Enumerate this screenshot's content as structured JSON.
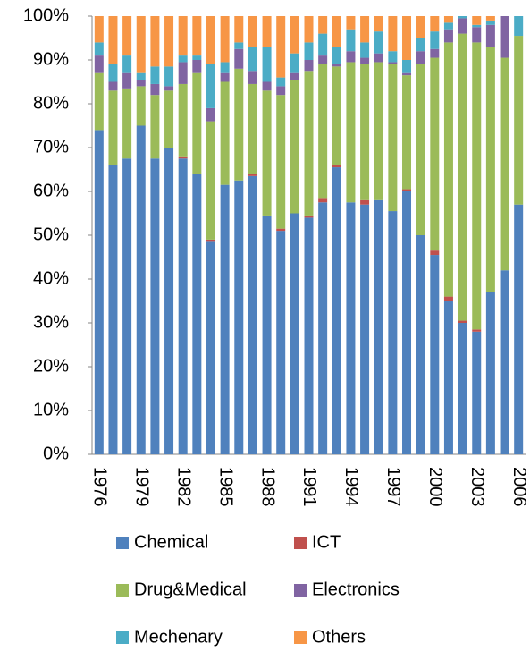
{
  "chart_data": {
    "type": "stacked_bar",
    "categories": [
      "1976",
      null,
      null,
      "1979",
      null,
      null,
      "1982",
      null,
      null,
      "1985",
      null,
      null,
      "1988",
      null,
      null,
      "1991",
      null,
      null,
      "1994",
      null,
      null,
      "1997",
      null,
      null,
      "2000",
      null,
      null,
      "2003",
      null,
      null,
      "2006"
    ],
    "series": [
      {
        "name": "Chemical",
        "color": "#4f81bd",
        "values": [
          74,
          66,
          67.5,
          75,
          67.5,
          70,
          67.5,
          64,
          48.5,
          61.5,
          62.5,
          63.5,
          54.5,
          51,
          55,
          54,
          57.5,
          65.5,
          57.5,
          57,
          58,
          55.5,
          60,
          50,
          45.5,
          35,
          30,
          28,
          37,
          42,
          57
        ]
      },
      {
        "name": "ICT",
        "color": "#c0504d",
        "values": [
          0,
          0,
          0,
          0,
          0,
          0,
          0.5,
          0,
          0.5,
          0,
          0,
          0.5,
          0,
          0.5,
          0,
          0.5,
          1,
          0.5,
          0,
          1,
          0,
          0,
          0.5,
          0,
          1,
          1,
          0.5,
          0.5,
          0,
          0,
          0
        ]
      },
      {
        "name": "Drug&Medical",
        "color": "#9bbb59",
        "values": [
          13,
          17,
          16,
          9,
          14.5,
          13,
          16.5,
          23,
          27,
          23.5,
          25.5,
          20.5,
          28.5,
          30.5,
          30.5,
          33,
          30.5,
          22.5,
          32,
          31,
          31.5,
          33.5,
          26,
          39,
          44,
          58,
          65.5,
          65.5,
          56,
          48.5,
          38.5
        ]
      },
      {
        "name": "Electronics",
        "color": "#8064a2",
        "values": [
          4,
          2,
          3.5,
          1.5,
          2.5,
          1,
          5,
          3,
          3,
          2,
          4.5,
          3,
          2,
          2,
          1.5,
          2.5,
          2,
          0.5,
          2.5,
          1.5,
          2,
          0.5,
          0.5,
          3,
          2,
          3,
          3.5,
          3.5,
          5,
          9.5,
          0
        ]
      },
      {
        "name": "Mechenary",
        "color": "#4bacc6",
        "values": [
          3,
          4,
          4,
          1.5,
          4,
          4.5,
          1.5,
          1,
          10,
          2.5,
          1.5,
          5.5,
          8,
          2,
          4.5,
          4,
          5,
          4,
          5,
          3.5,
          5,
          2.5,
          3,
          3,
          4,
          1.5,
          0.5,
          0.5,
          1,
          0,
          4.5
        ]
      },
      {
        "name": "Others",
        "color": "#f79646",
        "values": [
          6,
          11,
          9,
          13,
          11.5,
          11.5,
          9,
          9,
          11,
          10.5,
          6,
          7,
          7,
          14,
          8.5,
          6,
          4,
          7,
          3,
          6,
          3.5,
          8,
          10,
          5,
          3.5,
          1.5,
          0,
          2,
          1,
          0,
          0
        ]
      }
    ],
    "ylim": [
      0,
      100
    ],
    "yticks": [
      {
        "value": 0,
        "label": "0%"
      },
      {
        "value": 10,
        "label": "10%"
      },
      {
        "value": 20,
        "label": "20%"
      },
      {
        "value": 30,
        "label": "30%"
      },
      {
        "value": 40,
        "label": "40%"
      },
      {
        "value": 50,
        "label": "50%"
      },
      {
        "value": 60,
        "label": "60%"
      },
      {
        "value": 70,
        "label": "70%"
      },
      {
        "value": 80,
        "label": "80%"
      },
      {
        "value": 90,
        "label": "90%"
      },
      {
        "value": 100,
        "label": "100%"
      }
    ],
    "grid": false,
    "legend": "bottom"
  }
}
